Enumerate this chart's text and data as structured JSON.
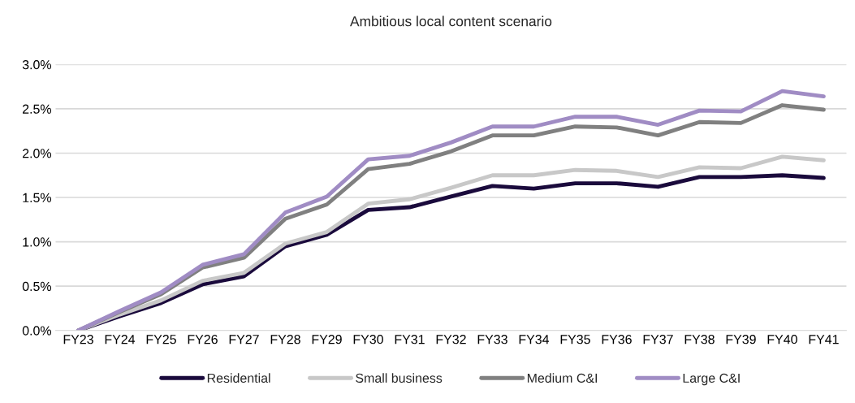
{
  "chart_data": {
    "type": "line",
    "title": "Ambitious local content scenario",
    "categories": [
      "FY23",
      "FY24",
      "FY25",
      "FY26",
      "FY27",
      "FY28",
      "FY29",
      "FY30",
      "FY31",
      "FY32",
      "FY33",
      "FY34",
      "FY35",
      "FY36",
      "FY37",
      "FY38",
      "FY39",
      "FY40",
      "FY41"
    ],
    "series": [
      {
        "name": "Residential",
        "color": "#1a0a3c",
        "values": [
          0,
          0.16,
          0.31,
          0.52,
          0.61,
          0.95,
          1.08,
          1.36,
          1.39,
          1.51,
          1.63,
          1.6,
          1.66,
          1.66,
          1.62,
          1.73,
          1.73,
          1.75,
          1.72
        ]
      },
      {
        "name": "Small business",
        "color": "#c8c8c8",
        "values": [
          0,
          0.18,
          0.34,
          0.56,
          0.65,
          0.98,
          1.11,
          1.43,
          1.48,
          1.61,
          1.75,
          1.75,
          1.81,
          1.8,
          1.73,
          1.84,
          1.83,
          1.96,
          1.92
        ]
      },
      {
        "name": "Medium C&I",
        "color": "#808080",
        "values": [
          0,
          0.21,
          0.41,
          0.71,
          0.82,
          1.26,
          1.42,
          1.82,
          1.88,
          2.02,
          2.2,
          2.2,
          2.3,
          2.29,
          2.2,
          2.35,
          2.34,
          2.54,
          2.49
        ]
      },
      {
        "name": "Large C&I",
        "color": "#a08cc4",
        "values": [
          0,
          0.22,
          0.43,
          0.74,
          0.86,
          1.33,
          1.51,
          1.93,
          1.97,
          2.12,
          2.3,
          2.3,
          2.41,
          2.41,
          2.32,
          2.48,
          2.47,
          2.7,
          2.64
        ]
      }
    ],
    "ylim": [
      0,
      3.0
    ],
    "yticks": [
      {
        "value": 0,
        "label": "0.0%"
      },
      {
        "value": 0.5,
        "label": "0.5%"
      },
      {
        "value": 1.0,
        "label": "1.0%"
      },
      {
        "value": 1.5,
        "label": "1.5%"
      },
      {
        "value": 2.0,
        "label": "2.0%"
      },
      {
        "value": 2.5,
        "label": "2.5%"
      },
      {
        "value": 3.0,
        "label": "3.0%"
      }
    ],
    "grid": "y",
    "legend": "bottom",
    "marker": "none",
    "line_style": "solid"
  }
}
